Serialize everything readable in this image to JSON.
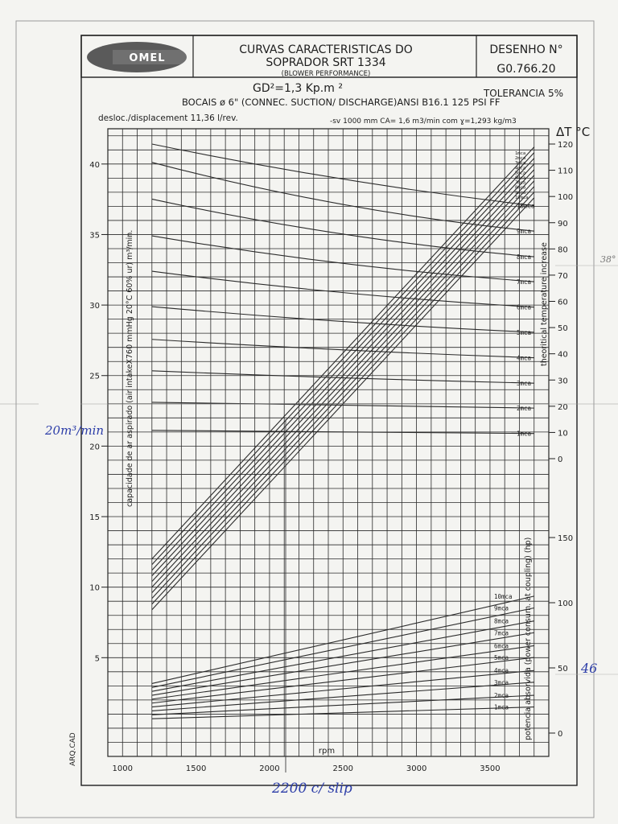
{
  "header": {
    "logo_text": "OMEL",
    "title_line1": "CURVAS CARACTERISTICAS DO",
    "title_line2": "SOPRADOR SRT 1334",
    "title_line3": "(BLOWER PERFORMANCE)",
    "drawing_label": "DESENHO N°",
    "drawing_number": "G0.766.20"
  },
  "specs": {
    "gd2": "GD²=1,3 Kp.m ²",
    "tolerance": "TOLERANCIA 5%",
    "nozzles": "BOCAIS ø   6\" (CONNEC. SUCTION/ DISCHARGE)ANSI B16.1 125 PSI FF",
    "displacement": "desloc./displacement 11,36 l/rev.",
    "note": "-sv 1000 mm CA= 1,6 m3/min com ɣ=1,293 kg/m3"
  },
  "side_text": "ARQ.CAD",
  "handwriting": {
    "flow": "20m³/min",
    "rpm": "2200 c/ slip",
    "power": "46",
    "temp": "38°"
  },
  "chart_data": {
    "type": "line",
    "xlabel": "rpm",
    "x_ticks": [
      1000,
      1500,
      2000,
      2500,
      3000,
      3500
    ],
    "xlim": [
      900,
      3900
    ],
    "left_axis": {
      "label": "capacidade de ar aspirado (air intakeX760 mmHg 20°C 60% ur) m³/min.",
      "ticks": [
        5,
        10,
        15,
        20,
        25,
        30,
        35,
        40
      ],
      "ylim": [
        -2,
        42.5
      ]
    },
    "temp_axis": {
      "label": "theoritical temperature increase",
      "unit": "ΔT °C",
      "ticks": [
        0,
        10,
        20,
        30,
        40,
        50,
        60,
        70,
        80,
        90,
        100,
        110,
        120
      ]
    },
    "power_axis": {
      "label": "potencia absorvida (power consum. at coupling) (hp)",
      "ticks": [
        0,
        50,
        100,
        150
      ]
    },
    "pressure_labels": [
      "1mca",
      "2mca",
      "3mca",
      "4mca",
      "5mca",
      "6mca",
      "7mca",
      "8mca",
      "9mca",
      "10mca"
    ],
    "capacity_series": [
      {
        "name": "1mca",
        "x": [
          1200,
          3800
        ],
        "y": [
          12.0,
          41.2
        ]
      },
      {
        "name": "2mca",
        "x": [
          1200,
          3800
        ],
        "y": [
          11.6,
          40.8
        ]
      },
      {
        "name": "3mca",
        "x": [
          1200,
          3800
        ],
        "y": [
          11.2,
          40.4
        ]
      },
      {
        "name": "4mca",
        "x": [
          1200,
          3800
        ],
        "y": [
          10.8,
          40.0
        ]
      },
      {
        "name": "5mca",
        "x": [
          1200,
          3800
        ],
        "y": [
          10.4,
          39.6
        ]
      },
      {
        "name": "6mca",
        "x": [
          1200,
          3800
        ],
        "y": [
          10.0,
          39.2
        ]
      },
      {
        "name": "7mca",
        "x": [
          1200,
          3800
        ],
        "y": [
          9.6,
          38.8
        ]
      },
      {
        "name": "8mca",
        "x": [
          1200,
          3800
        ],
        "y": [
          9.2,
          38.4
        ]
      },
      {
        "name": "9mca",
        "x": [
          1200,
          3800
        ],
        "y": [
          8.8,
          38.0
        ]
      },
      {
        "name": "10mca",
        "x": [
          1200,
          3800
        ],
        "y": [
          8.4,
          37.6
        ]
      }
    ],
    "temperature_series": [
      {
        "name": "1mca",
        "x": [
          1200,
          2500,
          3800
        ],
        "y": [
          10.8,
          10.2,
          9.6
        ]
      },
      {
        "name": "2mca",
        "x": [
          1200,
          2500,
          3800
        ],
        "y": [
          21.5,
          20.3,
          19.3
        ]
      },
      {
        "name": "3mca",
        "x": [
          1200,
          2500,
          3800
        ],
        "y": [
          33.5,
          30.5,
          28.8
        ]
      },
      {
        "name": "4mca",
        "x": [
          1200,
          2500,
          3800
        ],
        "y": [
          45.5,
          41.0,
          38.5
        ]
      },
      {
        "name": "5mca",
        "x": [
          1200,
          2500,
          3800
        ],
        "y": [
          58.0,
          51.5,
          48.2
        ]
      },
      {
        "name": "6mca",
        "x": [
          1200,
          2500,
          3800
        ],
        "y": [
          71.5,
          62.0,
          57.8
        ]
      },
      {
        "name": "7mca",
        "x": [
          1200,
          2500,
          3800
        ],
        "y": [
          85.0,
          72.7,
          67.5
        ]
      },
      {
        "name": "8mca",
        "x": [
          1200,
          2500,
          3800
        ],
        "y": [
          99.0,
          83.3,
          77.0
        ]
      },
      {
        "name": "9mca",
        "x": [
          1200,
          2500,
          3800
        ],
        "y": [
          113.0,
          94.0,
          86.8
        ]
      },
      {
        "name": "10mca",
        "x": [
          1200,
          2500,
          3800
        ],
        "y": [
          120.0,
          105.0,
          96.5
        ]
      }
    ],
    "power_series": [
      {
        "name": "1mca",
        "x": [
          1200,
          3800
        ],
        "y": [
          11,
          20
        ]
      },
      {
        "name": "2mca",
        "x": [
          1200,
          3800
        ],
        "y": [
          14,
          29
        ]
      },
      {
        "name": "3mca",
        "x": [
          1200,
          3800
        ],
        "y": [
          17,
          39
        ]
      },
      {
        "name": "4mca",
        "x": [
          1200,
          3800
        ],
        "y": [
          20,
          48
        ]
      },
      {
        "name": "5mca",
        "x": [
          1200,
          3800
        ],
        "y": [
          23,
          58
        ]
      },
      {
        "name": "6mca",
        "x": [
          1200,
          3800
        ],
        "y": [
          26,
          67
        ]
      },
      {
        "name": "7mca",
        "x": [
          1200,
          3800
        ],
        "y": [
          29,
          77
        ]
      },
      {
        "name": "8mca",
        "x": [
          1200,
          3800
        ],
        "y": [
          32,
          86
        ]
      },
      {
        "name": "9mca",
        "x": [
          1200,
          3800
        ],
        "y": [
          35,
          96
        ]
      },
      {
        "name": "10mca",
        "x": [
          1200,
          3800
        ],
        "y": [
          38,
          105
        ]
      }
    ],
    "grid": true
  }
}
